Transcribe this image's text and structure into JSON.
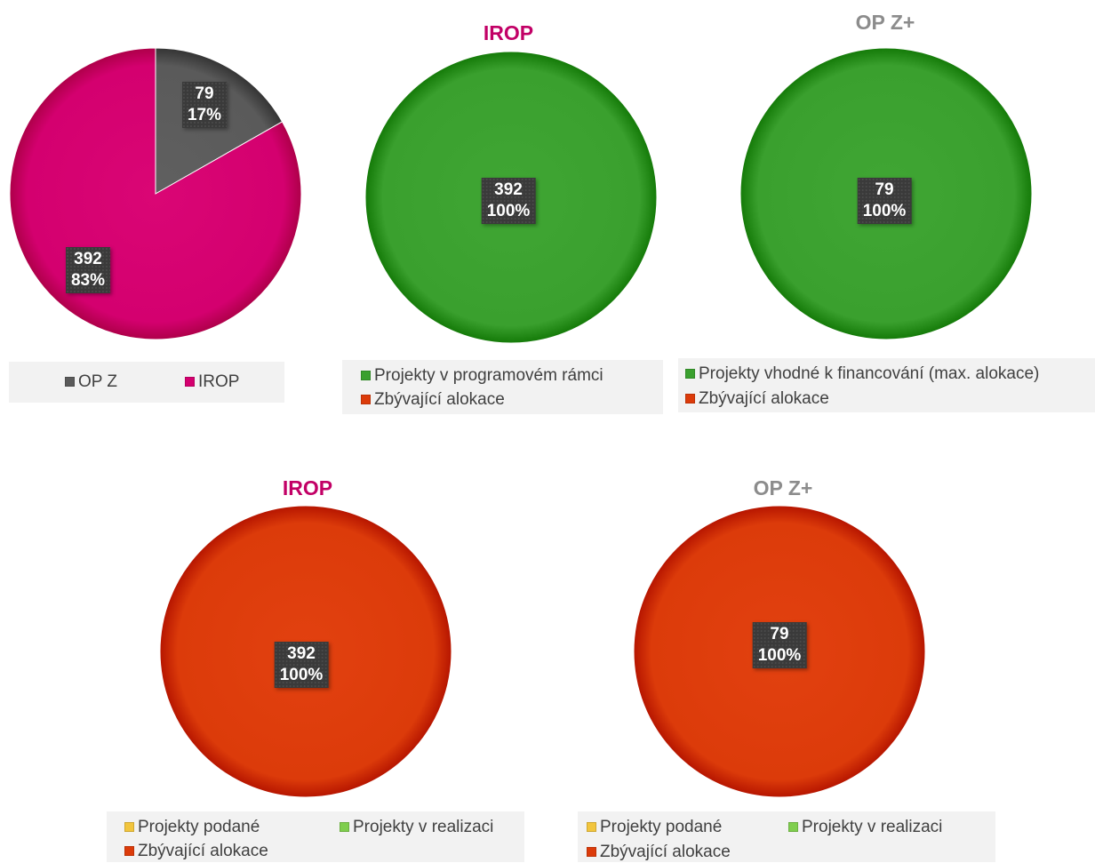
{
  "colors": {
    "op_z": "#5a5a5a",
    "irop": "#d4006f",
    "green": "#3aa02e",
    "orange": "#dc3b0a",
    "yellow": "#f2c53d",
    "lightgreen": "#7fce4e",
    "title_irop": "#c20066",
    "title_opz": "#8c8c8c"
  },
  "chart_data": [
    {
      "type": "pie",
      "title": "",
      "slices": [
        {
          "name": "OP Z",
          "value": 79,
          "percent": "17%",
          "color": "#5a5a5a"
        },
        {
          "name": "IROP",
          "value": 392,
          "percent": "83%",
          "color": "#d4006f"
        }
      ],
      "legend": [
        "OP Z",
        "IROP"
      ],
      "legend_position": "bottom"
    },
    {
      "type": "pie",
      "title": "IROP",
      "slices": [
        {
          "name": "Projekty v programovém rámci",
          "value": 392,
          "percent": "100%",
          "color": "#3aa02e"
        },
        {
          "name": "Zbývající alokace",
          "value": 0,
          "percent": "0%",
          "color": "#dc3b0a"
        }
      ],
      "legend": [
        "Projekty v programovém rámci",
        "Zbývající alokace"
      ],
      "legend_position": "bottom"
    },
    {
      "type": "pie",
      "title": "OP Z+",
      "slices": [
        {
          "name": "Projekty vhodné k financování (max. alokace)",
          "value": 79,
          "percent": "100%",
          "color": "#3aa02e"
        },
        {
          "name": "Zbývající alokace",
          "value": 0,
          "percent": "0%",
          "color": "#dc3b0a"
        }
      ],
      "legend": [
        "Projekty vhodné k financování (max. alokace)",
        "Zbývající alokace"
      ],
      "legend_position": "bottom"
    },
    {
      "type": "pie",
      "title": "IROP",
      "slices": [
        {
          "name": "Projekty podané",
          "value": 0,
          "percent": "0%",
          "color": "#f2c53d"
        },
        {
          "name": "Projekty v realizaci",
          "value": 0,
          "percent": "0%",
          "color": "#7fce4e"
        },
        {
          "name": "Zbývající alokace",
          "value": 392,
          "percent": "100%",
          "color": "#dc3b0a"
        }
      ],
      "legend": [
        "Projekty podané",
        "Projekty v realizaci",
        "Zbývající alokace"
      ],
      "legend_position": "bottom"
    },
    {
      "type": "pie",
      "title": "OP Z+",
      "slices": [
        {
          "name": "Projekty podané",
          "value": 0,
          "percent": "0%",
          "color": "#f2c53d"
        },
        {
          "name": "Projekty v realizaci",
          "value": 0,
          "percent": "0%",
          "color": "#7fce4e"
        },
        {
          "name": "Zbývající alokace",
          "value": 79,
          "percent": "100%",
          "color": "#dc3b0a"
        }
      ],
      "legend": [
        "Projekty podané",
        "Projekty v realizaci",
        "Zbývající alokace"
      ],
      "legend_position": "bottom"
    }
  ]
}
